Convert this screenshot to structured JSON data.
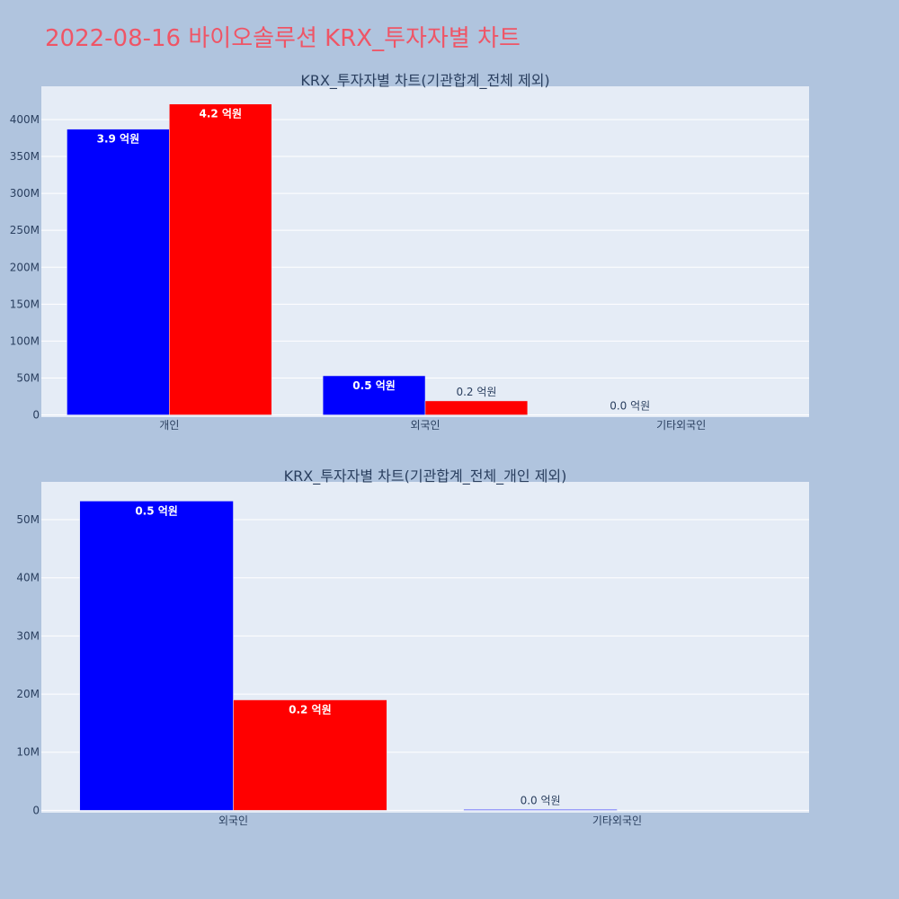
{
  "title": "2022-08-16 바이오솔루션 KRX_투자자별 차트",
  "chart_data": [
    {
      "type": "bar",
      "title": "KRX_투자자별 차트(기관합계_전체 제외)",
      "categories": [
        "개인",
        "외국인",
        "기타외국인"
      ],
      "series": [
        {
          "color": "#0000ff",
          "values": [
            387000000,
            53000000,
            0
          ],
          "labels": [
            "3.9 억원",
            "0.5 억원",
            "0.0 억원"
          ]
        },
        {
          "color": "#ff0000",
          "values": [
            421000000,
            19000000,
            0
          ],
          "labels": [
            "4.2 억원",
            "0.2 억원",
            ""
          ]
        }
      ],
      "ylim": [
        -3000000,
        445000000
      ],
      "yticks": [
        0,
        50000000,
        100000000,
        150000000,
        200000000,
        250000000,
        300000000,
        350000000,
        400000000
      ],
      "ytick_labels": [
        "0",
        "50M",
        "100M",
        "150M",
        "200M",
        "250M",
        "300M",
        "350M",
        "400M"
      ]
    },
    {
      "type": "bar",
      "title": "KRX_투자자별 차트(기관합계_전체_개인 제외)",
      "categories": [
        "외국인",
        "기타외국인"
      ],
      "series": [
        {
          "color": "#0000ff",
          "values": [
            53200000,
            150000
          ],
          "labels": [
            "0.5 억원",
            "0.0 억원"
          ]
        },
        {
          "color": "#ff0000",
          "values": [
            19000000,
            0
          ],
          "labels": [
            "0.2 억원",
            ""
          ]
        }
      ],
      "ylim": [
        -400000,
        56500000
      ],
      "yticks": [
        0,
        10000000,
        20000000,
        30000000,
        40000000,
        50000000
      ],
      "ytick_labels": [
        "0",
        "10M",
        "20M",
        "30M",
        "40M",
        "50M"
      ]
    }
  ]
}
